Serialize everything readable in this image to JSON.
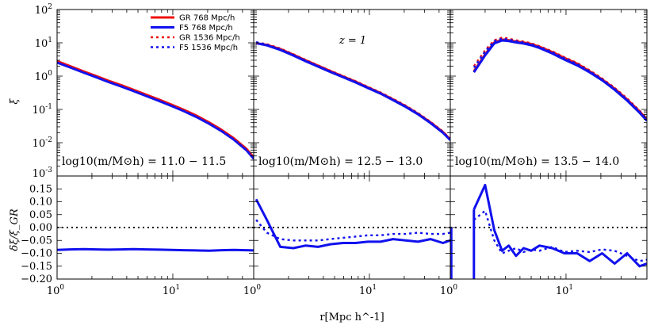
{
  "chart_data": {
    "type": "line",
    "title": "",
    "annotation": "z = 1",
    "xlabel": "r[Mpc h^-1]",
    "ylabel_top": "ξ",
    "ylabel_bottom": "δξ/ξ_GR",
    "xlim": [
      1,
      50
    ],
    "ylim_top_log10": [
      -3,
      2
    ],
    "ylim_bottom": [
      -0.2,
      0.2
    ],
    "legend": {
      "position": "top-left",
      "entries": [
        {
          "label": "GR 768 Mpc/h",
          "color": "#ee1111",
          "style": "solid"
        },
        {
          "label": "F5 768 Mpc/h",
          "color": "#1111ee",
          "style": "solid"
        },
        {
          "label": "GR 1536 Mpc/h",
          "color": "#ee1111",
          "style": "dotted"
        },
        {
          "label": "F5 1536 Mpc/h",
          "color": "#1111ee",
          "style": "dotted"
        }
      ]
    },
    "ticks": {
      "top_y": [
        "10^-3",
        "10^-2",
        "10^-1",
        "10^0",
        "10^1",
        "10^2"
      ],
      "bottom_y": [
        "0.15",
        "0.10",
        "0.05",
        "0.00",
        "−0.05",
        "−0.10",
        "−0.15",
        "−0.20"
      ],
      "x": [
        "10^0",
        "10^1"
      ]
    },
    "panels": [
      {
        "mass_label": "log10(m/M⊙h) = 11.0 − 11.5",
        "r": [
          1.0,
          1.3,
          1.7,
          2.2,
          2.8,
          3.6,
          4.6,
          5.9,
          7.6,
          9.7,
          12.5,
          16,
          20.5,
          26.3,
          33.7,
          43.2,
          50
        ],
        "xi": {
          "gr768": [
            2.8,
            1.98,
            1.38,
            0.99,
            0.72,
            0.53,
            0.385,
            0.275,
            0.197,
            0.14,
            0.097,
            0.065,
            0.041,
            0.0245,
            0.0135,
            0.0066,
            0.0036
          ],
          "f5_768": [
            2.55,
            1.82,
            1.27,
            0.91,
            0.66,
            0.485,
            0.352,
            0.252,
            0.18,
            0.128,
            0.088,
            0.059,
            0.0375,
            0.0224,
            0.0123,
            0.006,
            0.0033
          ],
          "gr1536": [
            2.85,
            2.01,
            1.4,
            1.0,
            0.73,
            0.535,
            0.39,
            0.278,
            0.2,
            0.142,
            0.098,
            0.066,
            0.0415,
            0.0248,
            0.0137,
            0.0067,
            0.0037
          ],
          "f5_1536": [
            2.6,
            1.85,
            1.29,
            0.92,
            0.67,
            0.49,
            0.356,
            0.255,
            0.182,
            0.13,
            0.089,
            0.06,
            0.038,
            0.0227,
            0.0125,
            0.0061,
            0.0034
          ]
        },
        "dxi": {
          "f5_768": [
            -0.087,
            -0.085,
            -0.084,
            -0.085,
            -0.086,
            -0.085,
            -0.084,
            -0.085,
            -0.086,
            -0.087,
            -0.088,
            -0.089,
            -0.09,
            -0.088,
            -0.087,
            -0.088,
            -0.089
          ],
          "f5_1536": null
        }
      },
      {
        "mass_label": "log10(m/M⊙h) = 12.5 − 13.0",
        "r": [
          1.05,
          1.3,
          1.7,
          2.2,
          2.8,
          3.6,
          4.6,
          5.9,
          7.6,
          9.7,
          12.5,
          16,
          20.5,
          26.3,
          33.7,
          43.2,
          50
        ],
        "xi": {
          "gr768": [
            9.6,
            8.7,
            6.5,
            4.4,
            3.0,
            2.05,
            1.42,
            0.98,
            0.68,
            0.46,
            0.31,
            0.2,
            0.125,
            0.074,
            0.041,
            0.021,
            0.0125
          ],
          "f5_768": [
            9.8,
            8.4,
            6.1,
            4.15,
            2.82,
            1.93,
            1.34,
            0.93,
            0.645,
            0.44,
            0.297,
            0.19,
            0.12,
            0.071,
            0.039,
            0.02,
            0.012
          ],
          "gr1536": [
            10.2,
            9.2,
            6.8,
            4.6,
            3.12,
            2.12,
            1.47,
            1.02,
            0.71,
            0.48,
            0.325,
            0.21,
            0.132,
            0.078,
            0.043,
            0.022,
            0.013
          ],
          "f5_1536": [
            10.5,
            8.9,
            6.4,
            4.35,
            2.95,
            2.01,
            1.4,
            0.975,
            0.675,
            0.46,
            0.31,
            0.2,
            0.126,
            0.075,
            0.041,
            0.021,
            0.0125
          ]
        },
        "dxi": {
          "f5_768": [
            0.11,
            0.03,
            -0.075,
            -0.08,
            -0.07,
            -0.075,
            -0.065,
            -0.06,
            -0.06,
            -0.055,
            -0.055,
            -0.045,
            -0.05,
            -0.055,
            -0.045,
            -0.06,
            -0.05
          ],
          "f5_1536": [
            0.03,
            -0.02,
            -0.045,
            -0.05,
            -0.05,
            -0.05,
            -0.045,
            -0.04,
            -0.035,
            -0.03,
            -0.03,
            -0.025,
            -0.025,
            -0.02,
            -0.025,
            -0.025,
            -0.02
          ]
        }
      },
      {
        "mass_label": "log10(m/M⊙h) = 13.5 − 14.0",
        "r": [
          1.6,
          2.0,
          2.4,
          2.8,
          3.2,
          3.7,
          4.3,
          5.0,
          5.9,
          7.6,
          9.7,
          12.5,
          16,
          20.5,
          26.3,
          33.7,
          43.2,
          50
        ],
        "xi": {
          "gr768": [
            1.4,
            4.5,
            10.2,
            12.5,
            12.0,
            11.0,
            10.2,
            9.2,
            7.6,
            5.3,
            3.5,
            2.35,
            1.4,
            0.8,
            0.42,
            0.2,
            0.087,
            0.05
          ],
          "f5_768": [
            1.3,
            4.2,
            9.6,
            11.8,
            11.3,
            10.3,
            9.5,
            8.5,
            7.0,
            4.8,
            3.15,
            2.1,
            1.3,
            0.75,
            0.39,
            0.185,
            0.08,
            0.046
          ],
          "gr1536": [
            2.0,
            6.0,
            12.0,
            14.5,
            13.5,
            12.0,
            11.0,
            9.8,
            8.0,
            5.6,
            3.7,
            2.5,
            1.5,
            0.86,
            0.45,
            0.215,
            0.093,
            0.054
          ],
          "f5_1536": [
            1.8,
            5.5,
            11.2,
            13.6,
            12.6,
            11.2,
            10.2,
            9.1,
            7.5,
            5.25,
            3.45,
            2.33,
            1.4,
            0.8,
            0.42,
            0.2,
            0.087,
            0.05
          ]
        },
        "dxi": {
          "f5_768": [
            0.07,
            0.165,
            -0.01,
            -0.09,
            -0.07,
            -0.11,
            -0.08,
            -0.09,
            -0.07,
            -0.08,
            -0.1,
            -0.1,
            -0.13,
            -0.1,
            -0.14,
            -0.1,
            -0.15,
            -0.14
          ],
          "f5_1536": [
            0.03,
            0.065,
            -0.05,
            -0.1,
            -0.09,
            -0.08,
            -0.095,
            -0.085,
            -0.09,
            -0.075,
            -0.095,
            -0.09,
            -0.095,
            -0.085,
            -0.09,
            -0.11,
            -0.13,
            -0.125
          ]
        }
      }
    ]
  }
}
